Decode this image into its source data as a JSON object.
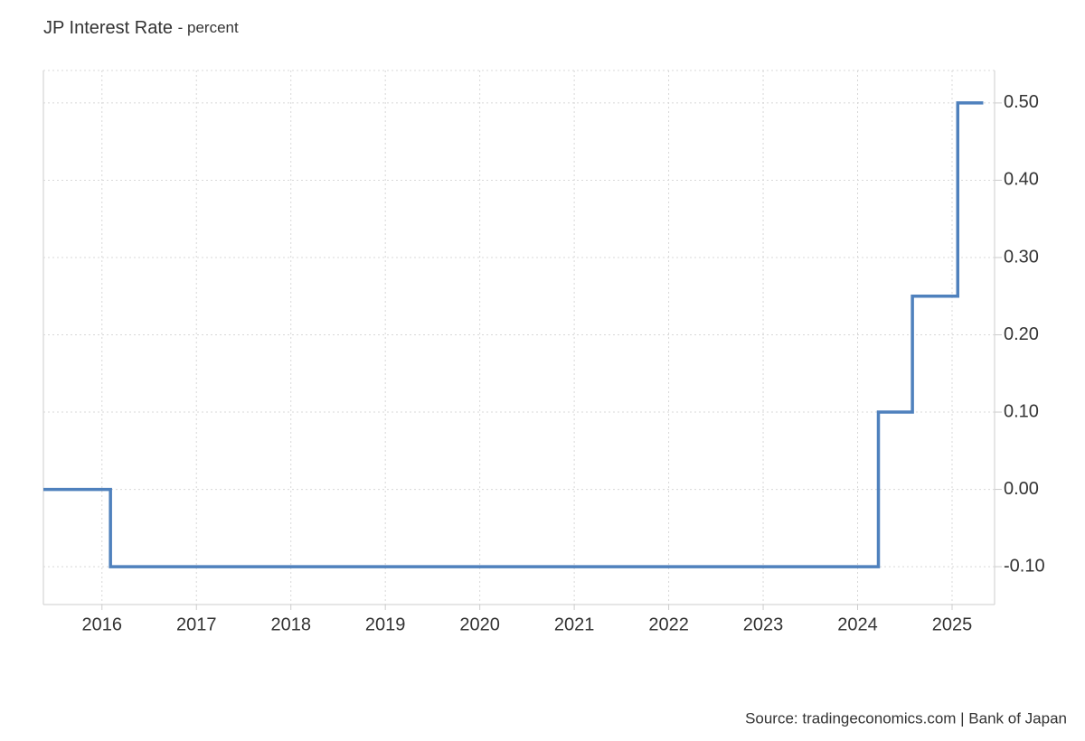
{
  "chart_data": {
    "type": "line",
    "step": "after",
    "title": "JP Interest Rate",
    "subtitle": "- percent",
    "source": "Source: tradingeconomics.com | Bank of Japan",
    "x": [
      2015.38,
      2016.09,
      2024.22,
      2024.58,
      2025.06,
      2025.33
    ],
    "series": [
      {
        "name": "JP Interest Rate",
        "color": "#4f81bd",
        "values": [
          0,
          -0.1,
          0.1,
          0.25,
          0.5,
          0.5
        ]
      }
    ],
    "xlim": [
      2015.38,
      2025.45
    ],
    "xticks": [
      2016,
      2017,
      2018,
      2019,
      2020,
      2021,
      2022,
      2023,
      2024,
      2025
    ],
    "ylim": [
      -0.149,
      0.542
    ],
    "yticks": [
      {
        "value": -0.1,
        "label": "-0.10"
      },
      {
        "value": 0,
        "label": "0.00"
      },
      {
        "value": 0.1,
        "label": "0.10"
      },
      {
        "value": 0.2,
        "label": "0.20"
      },
      {
        "value": 0.3,
        "label": "0.30"
      },
      {
        "value": 0.4,
        "label": "0.40"
      },
      {
        "value": 0.5,
        "label": "0.50"
      }
    ],
    "grid": true
  }
}
